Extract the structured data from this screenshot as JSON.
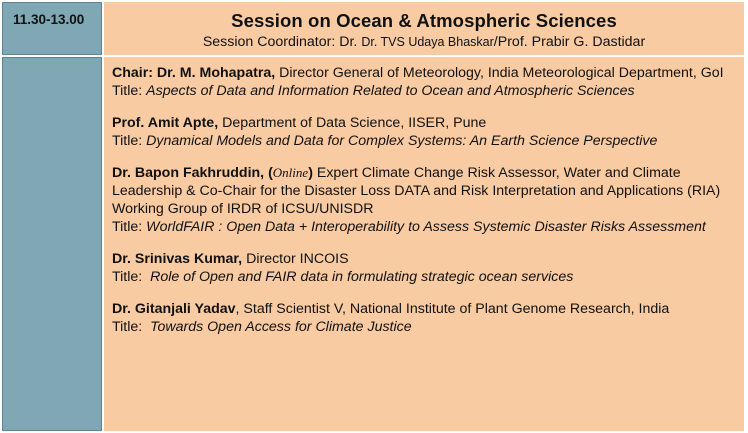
{
  "time_slot": "11.30-13.00",
  "session": {
    "title": "Session on Ocean & Atmospheric Sciences",
    "coordinator_label": "Session Coordinator: Dr. ",
    "coordinator_name": "Dr. TVS Udaya Bhaskar",
    "coordinator_rest": "/Prof. Prabir G. Dastidar"
  },
  "speakers": [
    {
      "name": "Chair: Dr. M. Mohapatra,",
      "affiliation": " Director General of Meteorology, India Meteorological Department, GoI",
      "title_label": "Title: ",
      "title": "Aspects of Data and Information Related to Ocean and Atmospheric Sciences"
    },
    {
      "name": "Prof. Amit Apte,",
      "affiliation": " Department of Data Science, IISER, Pune",
      "title_label": "Title: ",
      "title": "Dynamical Models and Data for Complex Systems: An Earth Science Perspective"
    },
    {
      "name": "Dr. Bapon Fakhruddin, (",
      "online": "Online",
      "name_close": ")",
      "affiliation": " Expert Climate Change Risk Assessor, Water and Climate Leadership & Co-Chair for the Disaster Loss DATA and Risk Interpretation and Applications (RIA) Working Group of IRDR of ICSU/UNISDR",
      "title_label": "Title: ",
      "title": "WorldFAIR : Open Data + Interoperability to Assess Systemic Disaster Risks Assessment"
    },
    {
      "name": "Dr. Srinivas Kumar,",
      "affiliation": " Director INCOIS",
      "title_label": "Title:  ",
      "title": "Role of Open and FAIR data in formulating strategic ocean services"
    },
    {
      "name": "Dr. Gitanjali Yadav",
      "affiliation": ", Staff Scientist V, National Institute of Plant Genome Research, India",
      "title_label": "Title:  ",
      "title": "Towards Open Access for Climate Justice"
    }
  ]
}
